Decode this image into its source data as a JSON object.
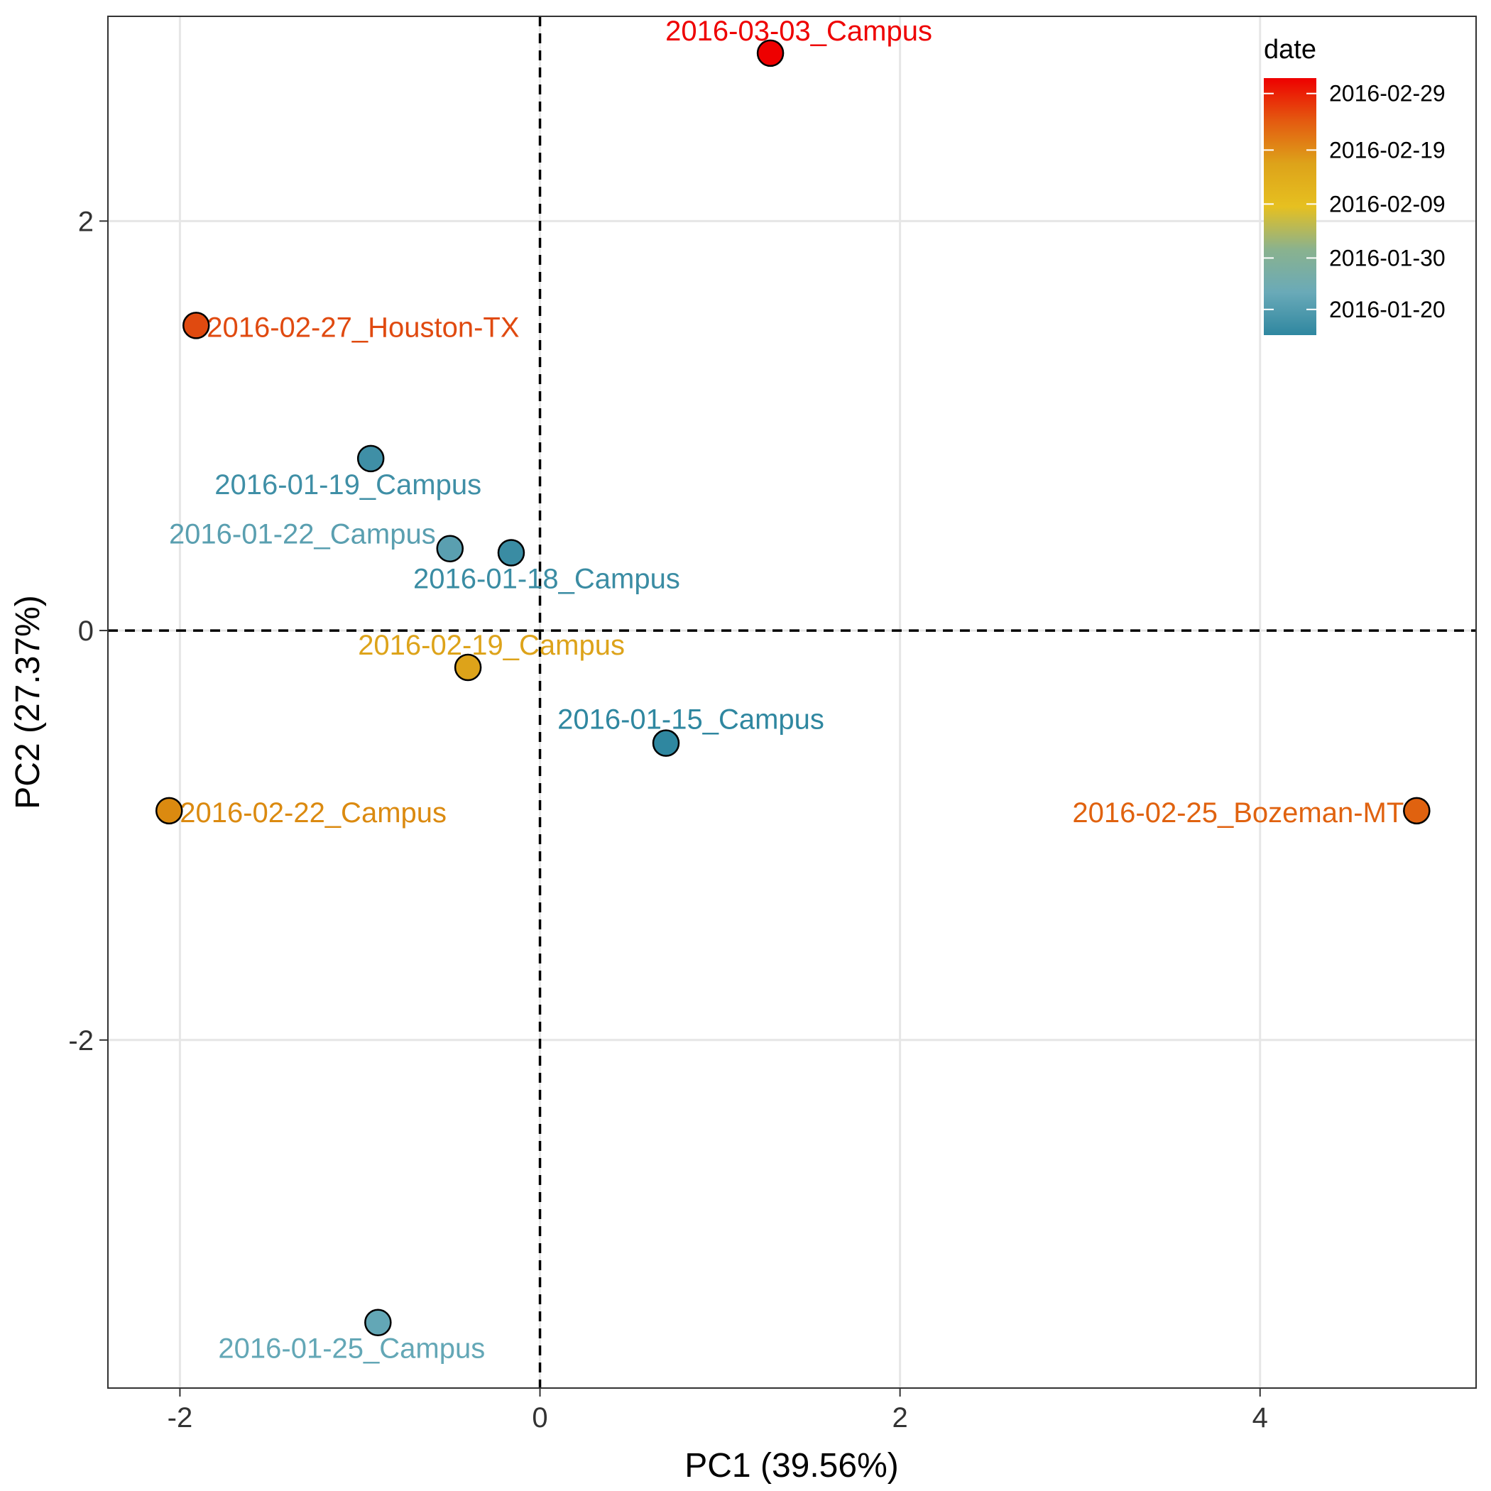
{
  "chart_data": {
    "type": "scatter",
    "xlabel": "PC1 (39.56%)",
    "ylabel": "PC2 (27.37%)",
    "xlim": [
      -2.4,
      5.2
    ],
    "ylim": [
      -3.7,
      3.0
    ],
    "x_ticks": [
      -2,
      0,
      2,
      4
    ],
    "y_ticks": [
      -2,
      0,
      2
    ],
    "x_tick_labels": [
      "-2",
      "0",
      "2",
      "4"
    ],
    "y_tick_labels": [
      "-2",
      "0",
      "2"
    ],
    "grid": true,
    "reference_lines": {
      "x": 0,
      "y": 0,
      "style": "dashed"
    },
    "points": [
      {
        "label": "2016-03-03_Campus",
        "x": 1.28,
        "y": 2.82,
        "color": "#EE0000"
      },
      {
        "label": "2016-02-27_Houston-TX",
        "x": -1.91,
        "y": 1.49,
        "color": "#E04A10"
      },
      {
        "label": "2016-01-19_Campus",
        "x": -0.94,
        "y": 0.84,
        "color": "#3F8FA6"
      },
      {
        "label": "2016-01-22_Campus",
        "x": -0.5,
        "y": 0.4,
        "color": "#5A9FB0"
      },
      {
        "label": "2016-01-18_Campus",
        "x": -0.16,
        "y": 0.38,
        "color": "#3A8CA3"
      },
      {
        "label": "2016-02-19_Campus",
        "x": -0.4,
        "y": -0.18,
        "color": "#DDA31A"
      },
      {
        "label": "2016-01-15_Campus",
        "x": 0.7,
        "y": -0.55,
        "color": "#2F87A0"
      },
      {
        "label": "2016-02-22_Campus",
        "x": -2.06,
        "y": -0.88,
        "color": "#DB8A10"
      },
      {
        "label": "2016-02-25_Bozeman-MT",
        "x": 4.87,
        "y": -0.88,
        "color": "#E0620F"
      },
      {
        "label": "2016-01-25_Campus",
        "x": -0.9,
        "y": -3.38,
        "color": "#63A7B6"
      }
    ],
    "legend": {
      "title": "date",
      "position": "top-right",
      "type": "colorbar",
      "gradient": [
        "#EE0000",
        "#E45A10",
        "#DDA31A",
        "#E6C020",
        "#8AB28E",
        "#6AAAB8",
        "#2F87A0"
      ],
      "labels": [
        "2016-02-29",
        "2016-02-19",
        "2016-02-09",
        "2016-01-30",
        "2016-01-20"
      ],
      "label_fractions": [
        0.06,
        0.28,
        0.49,
        0.7,
        0.9
      ]
    }
  }
}
